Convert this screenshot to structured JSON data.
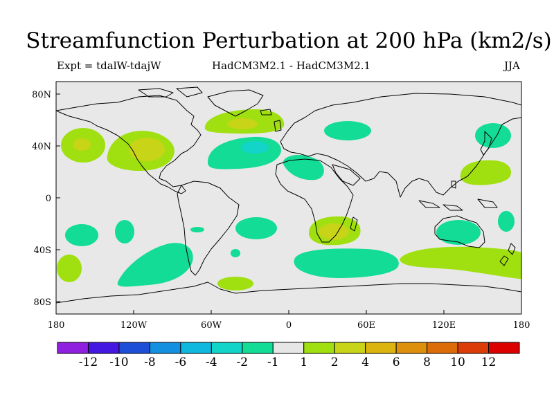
{
  "header": {
    "title": "Streamfunction Perturbation at 200 hPa (km2/s)",
    "experiment": "Expt = tdalW-tdajW",
    "models": "HadCM3M2.1 - HadCM3M2.1",
    "season": "JJA"
  },
  "map": {
    "type": "filled-contour-map",
    "variable": "Streamfunction perturbation",
    "level": "200 hPa",
    "units": "km2/s",
    "longitude_ticks": [
      "180",
      "120W",
      "60W",
      "0",
      "60E",
      "120E",
      "180"
    ],
    "latitude_ticks": [
      "80N",
      "40N",
      "0",
      "40S",
      "80S"
    ],
    "background_color": "#e8e8e8",
    "coastline_color": "#000000"
  },
  "colorbar": {
    "colors": [
      "#9020e0",
      "#4418e0",
      "#1c4ed8",
      "#1490e0",
      "#10b8e0",
      "#12d4c8",
      "#12dc96",
      "#e6e6e6",
      "#a0e010",
      "#c8d418",
      "#dcb410",
      "#dc900c",
      "#dc6c08",
      "#dc3c08",
      "#dc0000"
    ],
    "labels": [
      "-12",
      "-10",
      "-8",
      "-6",
      "-4",
      "-2",
      "-1",
      "1",
      "2",
      "4",
      "6",
      "8",
      "10",
      "12"
    ]
  }
}
